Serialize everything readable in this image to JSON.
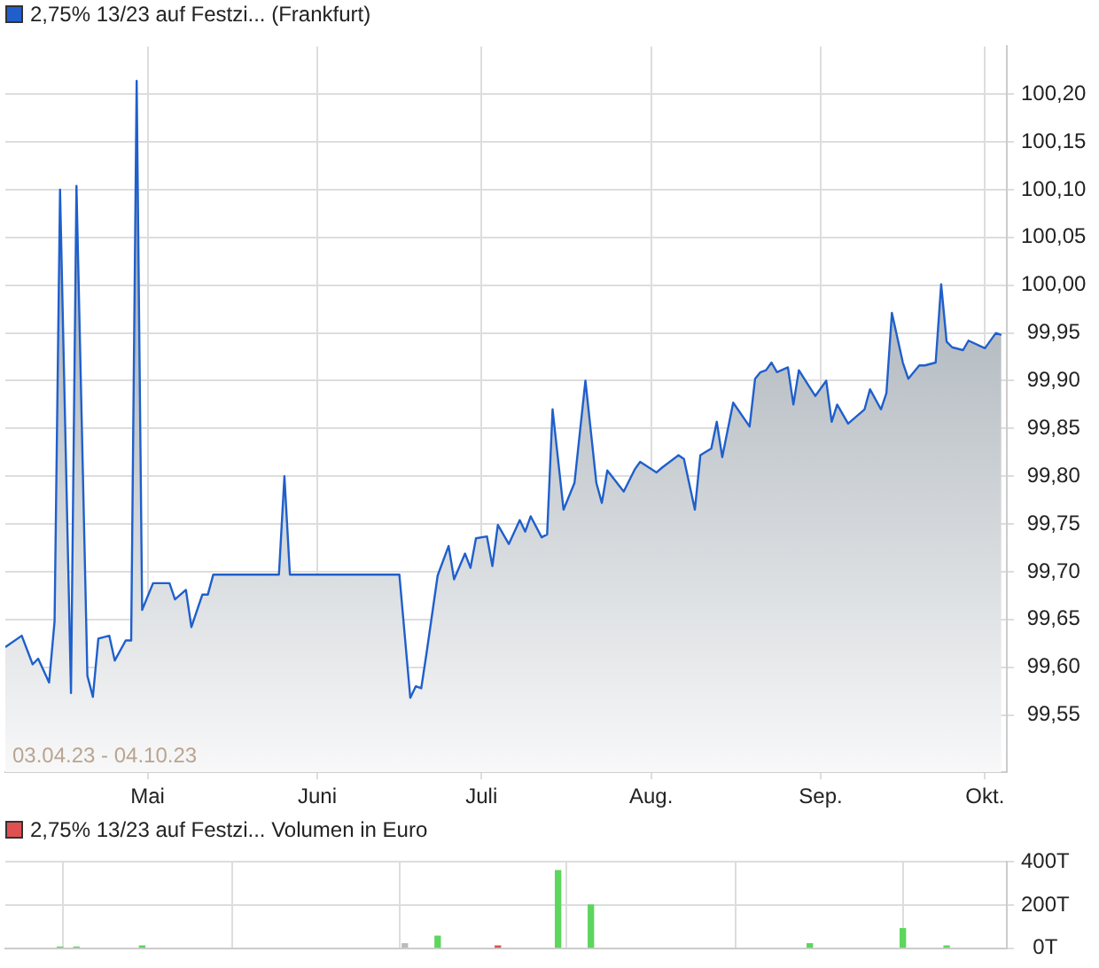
{
  "chart_data": [
    {
      "type": "area",
      "title": "2,75% 13/23 auf Festzi... (Frankfurt)",
      "annotations": [
        "03.04.23 - 04.10.23"
      ],
      "x": [
        "--04-05",
        "--04-08",
        "--04-10",
        "--04-11",
        "--04-13",
        "--04-14",
        "--04-15",
        "--04-17",
        "--04-18",
        "--04-20",
        "--04-21",
        "--04-22",
        "--04-24",
        "--04-25",
        "--04-27",
        "--04-28",
        "--04-29",
        "--04-30",
        "--05-02",
        "--05-05",
        "--05-06",
        "--05-08",
        "--05-09",
        "--05-11",
        "--05-12",
        "--05-13",
        "--05-25",
        "--05-26",
        "--05-27",
        "--06-16",
        "--06-18",
        "--06-19",
        "--06-20",
        "--06-21",
        "--06-23",
        "--06-25",
        "--06-26",
        "--06-28",
        "--06-29",
        "--06-30",
        "--07-02",
        "--07-03",
        "--07-04",
        "--07-06",
        "--07-08",
        "--07-09",
        "--07-10",
        "--07-12",
        "--07-13",
        "--07-14",
        "--07-16",
        "--07-18",
        "--07-20",
        "--07-22",
        "--07-23",
        "--07-24",
        "--07-27",
        "--07-29",
        "--07-30",
        "--08-02",
        "--08-03",
        "--08-06",
        "--08-07",
        "--08-09",
        "--08-10",
        "--08-12",
        "--08-13",
        "--08-14",
        "--08-16",
        "--08-19",
        "--08-20",
        "--08-21",
        "--08-22",
        "--08-23",
        "--08-24",
        "--08-26",
        "--08-27",
        "--08-28",
        "--08-30",
        "--08-31",
        "--09-02",
        "--09-03",
        "--09-04",
        "--09-06",
        "--09-09",
        "--09-10",
        "--09-12",
        "--09-13",
        "--09-14",
        "--09-16",
        "--09-17",
        "--09-19",
        "--09-20",
        "--09-22",
        "--09-23",
        "--09-24",
        "--09-25",
        "--09-27",
        "--09-28",
        "--10-01",
        "--10-03",
        "--10-04"
      ],
      "series": [
        {
          "color": "#1f5fcc",
          "values": [
            99.621,
            99.633,
            99.603,
            99.609,
            99.584,
            99.648,
            100.1,
            99.573,
            100.104,
            99.591,
            99.569,
            99.63,
            99.633,
            99.607,
            99.628,
            99.628,
            100.214,
            99.66,
            99.688,
            99.688,
            99.671,
            99.681,
            99.642,
            99.676,
            99.676,
            99.697,
            99.697,
            99.8,
            99.697,
            99.697,
            99.568,
            99.58,
            99.578,
            99.616,
            99.696,
            99.727,
            99.692,
            99.719,
            99.704,
            99.735,
            99.737,
            99.706,
            99.749,
            99.729,
            99.754,
            99.742,
            99.758,
            99.736,
            99.739,
            99.87,
            99.765,
            99.793,
            99.9,
            99.793,
            99.772,
            99.806,
            99.784,
            99.807,
            99.815,
            99.804,
            99.809,
            99.822,
            99.818,
            99.765,
            99.822,
            99.829,
            99.857,
            99.82,
            99.877,
            99.852,
            99.902,
            99.909,
            99.911,
            99.919,
            99.909,
            99.914,
            99.875,
            99.911,
            99.893,
            99.884,
            99.9,
            99.857,
            99.875,
            99.855,
            99.87,
            99.891,
            99.87,
            99.887,
            99.971,
            99.919,
            99.902,
            99.916,
            99.916,
            99.919,
            100.001,
            99.941,
            99.935,
            99.932,
            99.942,
            99.934,
            99.95,
            99.948
          ]
        }
      ],
      "xlim": [
        "--04-05",
        "--10-05"
      ],
      "xticks": [
        {
          "value": "--05-01",
          "label": "Mai"
        },
        {
          "value": "--06-01",
          "label": "Juni"
        },
        {
          "value": "--07-01",
          "label": "Juli"
        },
        {
          "value": "--08-01",
          "label": "Aug."
        },
        {
          "value": "--09-01",
          "label": "Sep."
        },
        {
          "value": "--10-01",
          "label": "Okt."
        }
      ],
      "ylim": [
        99.49,
        100.25
      ],
      "yticks": [
        {
          "value": 99.55,
          "label": "99,55"
        },
        {
          "value": 99.6,
          "label": "99,60"
        },
        {
          "value": 99.65,
          "label": "99,65"
        },
        {
          "value": 99.7,
          "label": "99,70"
        },
        {
          "value": 99.75,
          "label": "99,75"
        },
        {
          "value": 99.8,
          "label": "99,80"
        },
        {
          "value": 99.85,
          "label": "99,85"
        },
        {
          "value": 99.9,
          "label": "99,90"
        },
        {
          "value": 99.95,
          "label": "99,95"
        },
        {
          "value": 100,
          "label": "100,00"
        },
        {
          "value": 100.05,
          "label": "100,05"
        },
        {
          "value": 100.1,
          "label": "100,10"
        },
        {
          "value": 100.15,
          "label": "100,15"
        },
        {
          "value": 100.2,
          "label": "100,20"
        }
      ],
      "grid": true
    },
    {
      "type": "bar",
      "title": "2,75% 13/23 auf Festzi... Volumen in Euro",
      "x": [
        "--04-15",
        "--04-18",
        "--04-30",
        "--06-17",
        "--06-23",
        "--07-04",
        "--07-15",
        "--07-21",
        "--08-30",
        "--09-16",
        "--09-24"
      ],
      "values": [
        5,
        5,
        10,
        20,
        55,
        10,
        360,
        200,
        20,
        90,
        10
      ],
      "colors": [
        "#5cd65c",
        "#5cd65c",
        "#5cd65c",
        "#bbbbbb",
        "#5cd65c",
        "#e05050",
        "#5cd65c",
        "#5cd65c",
        "#5cd65c",
        "#5cd65c",
        "#5cd65c"
      ],
      "xlim": [
        "--04-05",
        "--10-05"
      ],
      "xticks": [
        {
          "value": "--05-01",
          "label": null
        },
        {
          "value": "--06-01",
          "label": null
        },
        {
          "value": "--07-01",
          "label": null
        },
        {
          "value": "--08-01",
          "label": null
        },
        {
          "value": "--09-01",
          "label": null
        },
        {
          "value": "--10-01",
          "label": null
        }
      ],
      "ylim": [
        0,
        400
      ],
      "yticks": [
        {
          "value": 0,
          "label": "0T"
        },
        {
          "value": 200,
          "label": "200T"
        },
        {
          "value": 400,
          "label": "400T"
        }
      ],
      "grid": true,
      "tick_labels": "y"
    }
  ]
}
